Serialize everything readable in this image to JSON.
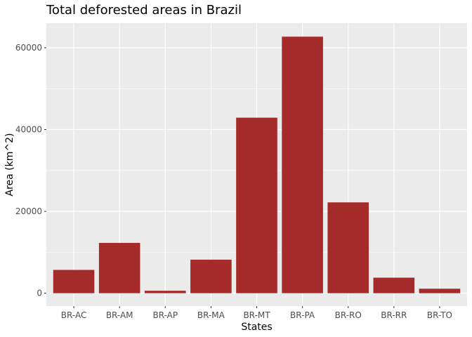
{
  "chart_data": {
    "type": "bar",
    "title": "Total deforested areas in Brazil",
    "xlabel": "States",
    "ylabel": "Area (km^2)",
    "categories": [
      "BR-AC",
      "BR-AM",
      "BR-AP",
      "BR-MA",
      "BR-MT",
      "BR-PA",
      "BR-RO",
      "BR-RR",
      "BR-TO"
    ],
    "values": [
      5700,
      12300,
      600,
      8200,
      42900,
      62700,
      22200,
      3800,
      1100
    ],
    "ylim": [
      -3150,
      66000
    ],
    "yticks": [
      0,
      20000,
      40000,
      60000
    ],
    "ytick_labels": [
      "0",
      "20000",
      "40000",
      "60000"
    ],
    "grid": true,
    "colors": {
      "bar": "#a52a2a",
      "panel": "#ebebeb",
      "grid": "#ffffff"
    }
  }
}
